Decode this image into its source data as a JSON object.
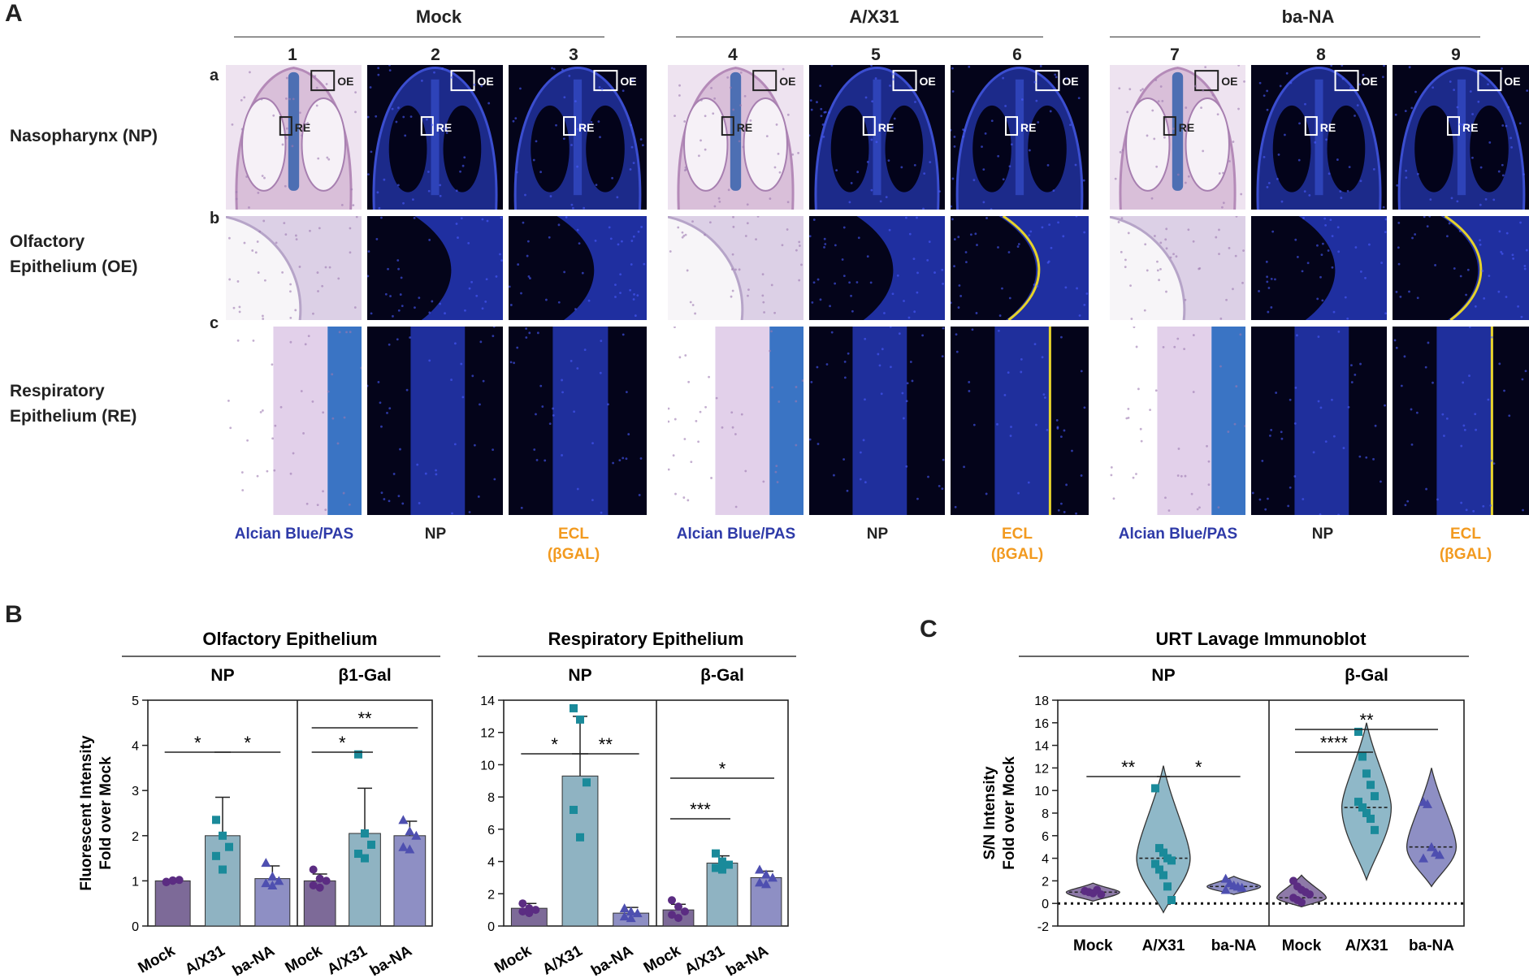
{
  "panelA": {
    "letter": "A",
    "groups": [
      "Mock",
      "A/X31",
      "ba-NA"
    ],
    "columns": [
      "1",
      "2",
      "3",
      "4",
      "5",
      "6",
      "7",
      "8",
      "9"
    ],
    "row_letters": [
      "a",
      "b",
      "c"
    ],
    "rows": [
      {
        "line1": "Nasopharynx (NP)",
        "line2": ""
      },
      {
        "line1": "Olfactory",
        "line2": "Epithelium (OE)"
      },
      {
        "line1": "Respiratory",
        "line2": "Epithelium (RE)"
      }
    ],
    "box_labels": {
      "oe": "OE",
      "re": "RE"
    },
    "stains": [
      {
        "line1": "Alcian Blue/PAS",
        "line2": "",
        "color": "#2e3aa8"
      },
      {
        "line1": "NP",
        "line2": "",
        "color": "#222222"
      },
      {
        "line1": "ECL",
        "line2": "(βGAL)",
        "color": "#f29a1f"
      }
    ]
  },
  "panelB": {
    "letter": "B",
    "ylabel_line1": "Fluorescent Intensity",
    "ylabel_line2": "Fold over Mock",
    "xcategories": [
      "Mock",
      "A/X31",
      "ba-NA"
    ],
    "colors": {
      "Mock": "#7d6a98",
      "A/X31": "#8fb3c2",
      "ba-NA": "#8e8fc4",
      "Mock_pt": "#5b2c82",
      "A/X31_pt": "#1a8a9a",
      "ba-NA_pt": "#4e4fb0"
    },
    "charts": [
      {
        "title": "Olfactory Epithelium",
        "subtitles": [
          "NP",
          "β1-Gal"
        ],
        "yticks": [
          "0",
          "1",
          "2",
          "3",
          "4",
          "5"
        ]
      },
      {
        "title": "Respiratory Epithelium",
        "subtitles": [
          "NP",
          "β-Gal"
        ],
        "yticks": [
          "0",
          "2",
          "4",
          "6",
          "8",
          "10",
          "12",
          "14"
        ]
      }
    ]
  },
  "panelC": {
    "letter": "C",
    "title": "URT Lavage Immunoblot",
    "subtitles": [
      "NP",
      "β-Gal"
    ],
    "ylabel_line1": "S/N Intensity",
    "ylabel_line2": "Fold over Mock",
    "yticks": [
      "-2",
      "0",
      "2",
      "4",
      "6",
      "8",
      "10",
      "12",
      "14",
      "16",
      "18"
    ],
    "xcategories": [
      "Mock",
      "A/X31",
      "ba-NA"
    ]
  },
  "chart_data": [
    {
      "type": "bar",
      "title": "Olfactory Epithelium",
      "ylabel": "Fluorescent Intensity Fold over Mock",
      "ylim": [
        0,
        5
      ],
      "panels": [
        {
          "name": "NP",
          "categories": [
            "Mock",
            "A/X31",
            "ba-NA"
          ],
          "means": [
            1.0,
            2.0,
            1.05
          ],
          "sd": [
            0.02,
            0.85,
            0.28
          ],
          "points": [
            [
              0.98,
              1.0,
              1.02,
              0.97,
              1.01
            ],
            [
              2.35,
              2.0,
              1.75,
              1.55,
              1.25
            ],
            [
              1.4,
              1.1,
              1.0,
              0.95,
              0.9
            ]
          ],
          "significance": [
            {
              "pair": [
                0,
                1
              ],
              "label": "*"
            },
            {
              "pair": [
                1,
                2
              ],
              "label": "*"
            }
          ]
        },
        {
          "name": "β1-Gal",
          "categories": [
            "Mock",
            "A/X31",
            "ba-NA"
          ],
          "means": [
            1.0,
            2.05,
            2.0
          ],
          "sd": [
            0.15,
            1.0,
            0.32
          ],
          "points": [
            [
              1.25,
              1.05,
              1.0,
              0.9,
              0.85
            ],
            [
              3.8,
              2.05,
              1.8,
              1.6,
              1.5
            ],
            [
              2.35,
              2.1,
              2.0,
              1.75,
              1.7
            ]
          ],
          "significance": [
            {
              "pair": [
                0,
                1
              ],
              "label": "*"
            },
            {
              "pair": [
                0,
                2
              ],
              "label": "**"
            }
          ]
        }
      ]
    },
    {
      "type": "bar",
      "title": "Respiratory Epithelium",
      "ylabel": "",
      "ylim": [
        0,
        14
      ],
      "panels": [
        {
          "name": "NP",
          "categories": [
            "Mock",
            "A/X31",
            "ba-NA"
          ],
          "means": [
            1.1,
            9.3,
            0.8
          ],
          "sd": [
            0.3,
            3.7,
            0.35
          ],
          "points": [
            [
              1.4,
              1.1,
              1.0,
              0.9,
              0.8
            ],
            [
              13.5,
              12.8,
              8.9,
              7.2,
              5.5
            ],
            [
              1.1,
              0.9,
              0.8,
              0.6,
              0.5
            ]
          ],
          "significance": [
            {
              "pair": [
                0,
                1
              ],
              "label": "*"
            },
            {
              "pair": [
                1,
                2
              ],
              "label": "**"
            }
          ]
        },
        {
          "name": "β-Gal",
          "categories": [
            "Mock",
            "A/X31",
            "ba-NA"
          ],
          "means": [
            1.0,
            3.9,
            3.0
          ],
          "sd": [
            0.35,
            0.45,
            0.4
          ],
          "points": [
            [
              1.6,
              1.2,
              0.9,
              0.7,
              0.5
            ],
            [
              4.5,
              4.0,
              3.8,
              3.6,
              3.5
            ],
            [
              3.5,
              3.2,
              3.0,
              2.7,
              2.6
            ]
          ],
          "significance": [
            {
              "pair": [
                0,
                1
              ],
              "label": "***"
            },
            {
              "pair": [
                0,
                2
              ],
              "label": "*"
            }
          ]
        }
      ]
    },
    {
      "type": "violin",
      "title": "URT Lavage Immunoblot",
      "ylabel": "S/N Intensity Fold over Mock",
      "ylim": [
        -2,
        18
      ],
      "panels": [
        {
          "name": "NP",
          "categories": [
            "Mock",
            "A/X31",
            "ba-NA"
          ],
          "medians": [
            1.0,
            4.0,
            1.5
          ],
          "ranges": [
            [
              0.2,
              1.8
            ],
            [
              -0.8,
              12.2
            ],
            [
              0.8,
              2.4
            ]
          ],
          "points": [
            [
              1.1,
              1.0,
              0.9,
              1.2,
              0.8
            ],
            [
              10.2,
              4.9,
              4.5,
              4.0,
              3.8,
              3.5,
              3.0,
              2.5,
              1.5,
              0.3
            ],
            [
              2.2,
              1.8,
              1.6,
              1.5,
              1.4,
              1.2
            ]
          ],
          "significance": [
            {
              "pair": [
                0,
                1
              ],
              "label": "**"
            },
            {
              "pair": [
                1,
                2
              ],
              "label": "*"
            }
          ]
        },
        {
          "name": "β-Gal",
          "categories": [
            "Mock",
            "A/X31",
            "ba-NA"
          ],
          "medians": [
            0.5,
            8.5,
            5.0
          ],
          "ranges": [
            [
              -0.3,
              2.5
            ],
            [
              2.1,
              16.0
            ],
            [
              1.5,
              12.0
            ]
          ],
          "points": [
            [
              2.0,
              1.5,
              1.2,
              1.0,
              0.8,
              0.5,
              0.3,
              0.1
            ],
            [
              15.2,
              13.0,
              11.5,
              10.5,
              9.5,
              9.0,
              8.5,
              8.0,
              7.5,
              6.5
            ],
            [
              9.0,
              8.8,
              5.0,
              4.5,
              4.3,
              4.0
            ]
          ],
          "significance": [
            {
              "pair": [
                0,
                1
              ],
              "label": "****"
            },
            {
              "pair": [
                0,
                2
              ],
              "label": "**"
            }
          ]
        }
      ]
    }
  ]
}
